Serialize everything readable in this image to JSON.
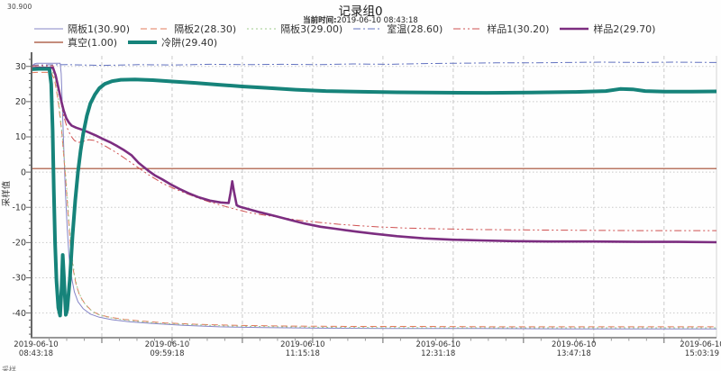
{
  "chart_data": {
    "type": "line",
    "title": "记录组0",
    "subtitle_label": "当前时间:",
    "subtitle_value": "2019-06-10  08:43:18",
    "ylabel": "采样值",
    "ymax_readout": "30.900",
    "corner_text": "采样",
    "grid": {
      "on": true,
      "color": "#c9c9c9"
    },
    "axis_color": "#666666",
    "legend_position": "top",
    "ylim": [
      -47,
      33
    ],
    "y_ticks": [
      30,
      20,
      10,
      0,
      -10,
      -20,
      -30,
      -40
    ],
    "xlim_minutes": [
      0,
      384
    ],
    "x_grid_minutes": [
      39.4,
      78.8,
      118.2,
      157.6,
      197.0,
      236.4,
      275.8,
      315.2,
      354.6
    ],
    "x_minor_step_minutes": 9.85,
    "x_tick_minutes": [
      0,
      76,
      152,
      228,
      304,
      380
    ],
    "x_tick_labels": [
      [
        "2019-06-10",
        "08:43:18"
      ],
      [
        "2019-06-10",
        "09:59:18"
      ],
      [
        "2019-06-10",
        "11:15:18"
      ],
      [
        "2019-06-10",
        "12:31:18"
      ],
      [
        "2019-06-10",
        "13:47:18"
      ],
      [
        "2019-06-10",
        "15:03:19"
      ]
    ],
    "series": [
      {
        "id": "geban1",
        "name": "隔板1",
        "legend_label": "隔板1(30.90)",
        "current_value": 30.9,
        "color": "#8585c7",
        "width": 1,
        "dash": "",
        "legend_row": 1,
        "points": [
          [
            0,
            29.8
          ],
          [
            1.5,
            30.7
          ],
          [
            3,
            30.9
          ],
          [
            16,
            30.9
          ],
          [
            16.6,
            28
          ],
          [
            17.2,
            20
          ],
          [
            18,
            8
          ],
          [
            19,
            -6
          ],
          [
            20,
            -16
          ],
          [
            21,
            -24
          ],
          [
            22.5,
            -30
          ],
          [
            24,
            -34
          ],
          [
            26,
            -36.8
          ],
          [
            29,
            -38.8
          ],
          [
            33,
            -40.3
          ],
          [
            38,
            -41.2
          ],
          [
            45,
            -41.9
          ],
          [
            55,
            -42.5
          ],
          [
            68,
            -43.0
          ],
          [
            85,
            -43.5
          ],
          [
            105,
            -43.9
          ],
          [
            130,
            -44.1
          ],
          [
            160,
            -44.3
          ],
          [
            200,
            -44.4
          ],
          [
            250,
            -44.4
          ],
          [
            300,
            -44.5
          ],
          [
            350,
            -44.5
          ],
          [
            384,
            -44.5
          ]
        ]
      },
      {
        "id": "geban2",
        "name": "隔板2",
        "legend_label": "隔板2(28.30)",
        "current_value": 28.3,
        "color": "#e2795b",
        "width": 1,
        "dash": "7,4",
        "legend_row": 1,
        "points": [
          [
            0,
            28.2
          ],
          [
            3,
            28.3
          ],
          [
            11,
            28.3
          ],
          [
            13,
            26
          ],
          [
            15,
            20
          ],
          [
            17,
            11
          ],
          [
            19,
            -1
          ],
          [
            20.5,
            -12
          ],
          [
            22,
            -22
          ],
          [
            23.5,
            -28
          ],
          [
            25,
            -32
          ],
          [
            27,
            -35
          ],
          [
            30,
            -37.5
          ],
          [
            34,
            -39.5
          ],
          [
            38,
            -40.5
          ],
          [
            44,
            -41.2
          ],
          [
            52,
            -41.8
          ],
          [
            62,
            -42.3
          ],
          [
            75,
            -42.8
          ],
          [
            92,
            -43.2
          ],
          [
            115,
            -43.5
          ],
          [
            145,
            -43.7
          ],
          [
            180,
            -43.8
          ],
          [
            220,
            -43.8
          ],
          [
            265,
            -43.9
          ],
          [
            310,
            -43.9
          ],
          [
            350,
            -43.9
          ],
          [
            384,
            -43.9
          ]
        ]
      },
      {
        "id": "geban3",
        "name": "隔板3",
        "legend_label": "隔板3(29.00)",
        "current_value": 29.0,
        "color": "#9dc98c",
        "width": 1,
        "dash": "2,3",
        "legend_row": 1,
        "points": [
          [
            0,
            29.0
          ],
          [
            3,
            29.0
          ],
          [
            11.5,
            29.0
          ],
          [
            13.5,
            26
          ],
          [
            15.5,
            19
          ],
          [
            17.5,
            9
          ],
          [
            19.5,
            -3
          ],
          [
            21,
            -14
          ],
          [
            22.5,
            -23
          ],
          [
            24,
            -29
          ],
          [
            26,
            -33.5
          ],
          [
            28.5,
            -36.5
          ],
          [
            32,
            -38.7
          ],
          [
            36,
            -40.2
          ],
          [
            41,
            -41.0
          ],
          [
            48,
            -41.7
          ],
          [
            58,
            -42.3
          ],
          [
            72,
            -42.9
          ],
          [
            90,
            -43.3
          ],
          [
            112,
            -43.7
          ],
          [
            140,
            -43.9
          ],
          [
            175,
            -44.1
          ],
          [
            215,
            -44.2
          ],
          [
            260,
            -44.2
          ],
          [
            310,
            -44.2
          ],
          [
            384,
            -44.2
          ]
        ]
      },
      {
        "id": "shiwen",
        "name": "室温",
        "legend_label": "室温(28.60)",
        "current_value": 28.6,
        "color": "#6272c0",
        "width": 1,
        "dash": "8,3,2,3",
        "legend_row": 1,
        "points": [
          [
            0,
            30.4
          ],
          [
            20,
            30.5
          ],
          [
            40,
            30.3
          ],
          [
            60,
            30.5
          ],
          [
            80,
            30.4
          ],
          [
            100,
            30.6
          ],
          [
            120,
            30.5
          ],
          [
            140,
            30.6
          ],
          [
            160,
            30.5
          ],
          [
            180,
            30.7
          ],
          [
            200,
            30.6
          ],
          [
            220,
            30.8
          ],
          [
            240,
            30.9
          ],
          [
            260,
            31.0
          ],
          [
            280,
            31.0
          ],
          [
            300,
            31.1
          ],
          [
            320,
            31.2
          ],
          [
            340,
            31.1
          ],
          [
            360,
            31.2
          ],
          [
            384,
            31.1
          ]
        ]
      },
      {
        "id": "zhenkong",
        "name": "真空",
        "legend_label": "真空(1.00)",
        "current_value": 1.0,
        "color": "#a2492e",
        "width": 1.2,
        "dash": "",
        "legend_row": 2,
        "points": [
          [
            0,
            1
          ],
          [
            384,
            1
          ]
        ]
      },
      {
        "id": "yangpin1",
        "name": "样品1",
        "legend_label": "样品1(30.20)",
        "current_value": 30.2,
        "color": "#cf5050",
        "width": 1,
        "dash": "8,3,2,3,2,3",
        "legend_row": 1,
        "points": [
          [
            0,
            30.1
          ],
          [
            3,
            30.2
          ],
          [
            12,
            30.2
          ],
          [
            14,
            26
          ],
          [
            16,
            21
          ],
          [
            18,
            16
          ],
          [
            20,
            12.5
          ],
          [
            22,
            10.3
          ],
          [
            24,
            9.0
          ],
          [
            26,
            8.4
          ],
          [
            29,
            8.7
          ],
          [
            32,
            9.2
          ],
          [
            35,
            9.0
          ],
          [
            38,
            8.3
          ],
          [
            42,
            7.2
          ],
          [
            46,
            6.0
          ],
          [
            50,
            4.7
          ],
          [
            54,
            3.3
          ],
          [
            58,
            1.9
          ],
          [
            62,
            0.5
          ],
          [
            66,
            -0.9
          ],
          [
            70,
            -2.1
          ],
          [
            73,
            -3.1
          ],
          [
            80,
            -4.7
          ],
          [
            86,
            -5.9
          ],
          [
            93,
            -7.3
          ],
          [
            100,
            -8.5
          ],
          [
            107,
            -9.5
          ],
          [
            114,
            -10.5
          ],
          [
            122,
            -11.5
          ],
          [
            130,
            -12.2
          ],
          [
            136,
            -12.6
          ],
          [
            144,
            -13.2
          ],
          [
            152,
            -13.8
          ],
          [
            162,
            -14.3
          ],
          [
            172,
            -14.8
          ],
          [
            183,
            -15.2
          ],
          [
            196,
            -15.6
          ],
          [
            210,
            -15.9
          ],
          [
            228,
            -16.1
          ],
          [
            250,
            -16.3
          ],
          [
            275,
            -16.4
          ],
          [
            305,
            -16.5
          ],
          [
            340,
            -16.6
          ],
          [
            384,
            -16.6
          ]
        ]
      },
      {
        "id": "yangpin2",
        "name": "样品2",
        "legend_label": "样品2(29.70)",
        "current_value": 29.7,
        "color": "#7c2d80",
        "width": 2.6,
        "dash": "",
        "legend_row": 1,
        "points": [
          [
            0,
            29.5
          ],
          [
            3,
            29.6
          ],
          [
            12,
            29.6
          ],
          [
            13.5,
            27.5
          ],
          [
            15,
            24
          ],
          [
            16.5,
            20.5
          ],
          [
            18,
            17.5
          ],
          [
            19.5,
            15.3
          ],
          [
            21,
            14.0
          ],
          [
            22.5,
            13.2
          ],
          [
            25,
            12.6
          ],
          [
            28,
            12.1
          ],
          [
            32,
            11.3
          ],
          [
            36,
            10.4
          ],
          [
            40,
            9.4
          ],
          [
            44,
            8.5
          ],
          [
            48,
            7.4
          ],
          [
            52,
            6.2
          ],
          [
            56,
            4.8
          ],
          [
            60,
            2.6
          ],
          [
            63,
            1.4
          ],
          [
            66,
            0.2
          ],
          [
            69,
            -0.9
          ],
          [
            73,
            -2.0
          ],
          [
            78,
            -3.5
          ],
          [
            83,
            -4.8
          ],
          [
            88,
            -6.0
          ],
          [
            94,
            -7.2
          ],
          [
            100,
            -8.1
          ],
          [
            106,
            -8.6
          ],
          [
            110.5,
            -8.8
          ],
          [
            111.5,
            -6.0
          ],
          [
            112.5,
            -2.6
          ],
          [
            113.5,
            -5.5
          ],
          [
            115,
            -9.4
          ],
          [
            117,
            -9.9
          ],
          [
            120,
            -10.3
          ],
          [
            128,
            -11.4
          ],
          [
            136,
            -12.4
          ],
          [
            145,
            -13.6
          ],
          [
            153,
            -14.6
          ],
          [
            162,
            -15.5
          ],
          [
            172,
            -16.2
          ],
          [
            182,
            -16.9
          ],
          [
            192,
            -17.5
          ],
          [
            205,
            -18.2
          ],
          [
            220,
            -18.8
          ],
          [
            236,
            -19.2
          ],
          [
            252,
            -19.4
          ],
          [
            270,
            -19.6
          ],
          [
            290,
            -19.7
          ],
          [
            315,
            -19.7
          ],
          [
            340,
            -19.8
          ],
          [
            362,
            -19.8
          ],
          [
            384,
            -19.9
          ]
        ]
      },
      {
        "id": "lengjing",
        "name": "冷阱",
        "legend_label": "冷阱(29.40)",
        "current_value": 29.4,
        "color": "#16837a",
        "width": 4,
        "dash": "",
        "legend_row": 2,
        "points": [
          [
            0,
            29.2
          ],
          [
            4,
            29.3
          ],
          [
            10,
            29.3
          ],
          [
            11,
            25
          ],
          [
            11.8,
            12
          ],
          [
            12.5,
            -5
          ],
          [
            13.2,
            -20
          ],
          [
            14,
            -31
          ],
          [
            15,
            -38.5
          ],
          [
            16,
            -40.7
          ],
          [
            16.8,
            -33
          ],
          [
            17.5,
            -23.5
          ],
          [
            18.3,
            -31
          ],
          [
            19.2,
            -40.5
          ],
          [
            20,
            -39
          ],
          [
            21.5,
            -30
          ],
          [
            23,
            -18
          ],
          [
            24.5,
            -8
          ],
          [
            26,
            0
          ],
          [
            27.5,
            6
          ],
          [
            29,
            11
          ],
          [
            31,
            16
          ],
          [
            33,
            19.5
          ],
          [
            35.5,
            22
          ],
          [
            38,
            23.8
          ],
          [
            41,
            25
          ],
          [
            45,
            25.8
          ],
          [
            50,
            26.2
          ],
          [
            58,
            26.3
          ],
          [
            68,
            26.1
          ],
          [
            80,
            25.7
          ],
          [
            92,
            25.3
          ],
          [
            105,
            24.8
          ],
          [
            118,
            24.3
          ],
          [
            132,
            23.9
          ],
          [
            148,
            23.4
          ],
          [
            165,
            23.0
          ],
          [
            185,
            22.8
          ],
          [
            205,
            22.65
          ],
          [
            230,
            22.55
          ],
          [
            255,
            22.5
          ],
          [
            280,
            22.6
          ],
          [
            305,
            22.75
          ],
          [
            322,
            23.0
          ],
          [
            330,
            23.6
          ],
          [
            337,
            23.5
          ],
          [
            344,
            23.0
          ],
          [
            355,
            22.85
          ],
          [
            370,
            22.85
          ],
          [
            384,
            22.9
          ]
        ]
      }
    ]
  }
}
